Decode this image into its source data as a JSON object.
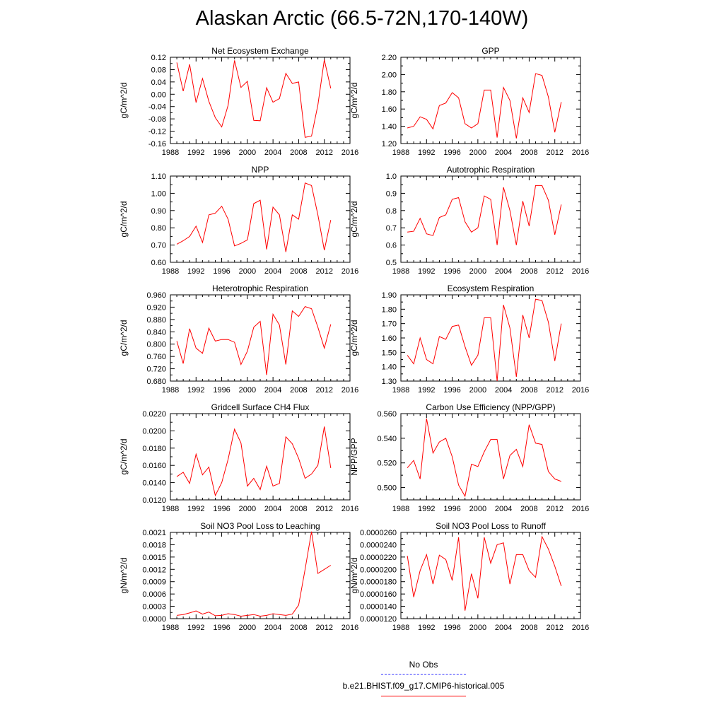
{
  "figure": {
    "title": "Alaskan Arctic (66.5-72N,170-140W)",
    "series_color": "#ff0000",
    "obs_color": "#3333ff"
  },
  "legend": {
    "obs_label": "No Obs",
    "model_label": "b.e21.BHIST.f09_g17.CMIP6-historical.005"
  },
  "chart_data": [
    {
      "type": "line",
      "title": "Net Ecosystem Exchange",
      "ylabel": "gC/m^2/d",
      "xlim": [
        1988,
        2016
      ],
      "xticks": [
        1988,
        1992,
        1996,
        2000,
        2004,
        2008,
        2012,
        2016
      ],
      "ylim": [
        -0.16,
        0.12
      ],
      "yticks": [
        "-0.16",
        "-0.12",
        "-0.08",
        "-0.04",
        "0.00",
        "0.04",
        "0.08",
        "0.12"
      ],
      "x": [
        1989,
        1990,
        1991,
        1992,
        1993,
        1994,
        1995,
        1996,
        1997,
        1998,
        1999,
        2000,
        2001,
        2002,
        2003,
        2004,
        2005,
        2006,
        2007,
        2008,
        2009,
        2010,
        2011,
        2012,
        2013
      ],
      "values": [
        0.103,
        0.01,
        0.097,
        -0.027,
        0.051,
        -0.023,
        -0.076,
        -0.106,
        -0.036,
        0.11,
        0.022,
        0.042,
        -0.085,
        -0.086,
        0.021,
        -0.026,
        -0.014,
        0.068,
        0.035,
        0.04,
        -0.14,
        -0.136,
        -0.035,
        0.112,
        0.019
      ]
    },
    {
      "type": "line",
      "title": "GPP",
      "ylabel": "gC/m^2/d",
      "xlim": [
        1988,
        2016
      ],
      "xticks": [
        1988,
        1992,
        1996,
        2000,
        2004,
        2008,
        2012,
        2016
      ],
      "ylim": [
        1.2,
        2.2
      ],
      "yticks": [
        "1.20",
        "1.40",
        "1.60",
        "1.80",
        "2.00",
        "2.20"
      ],
      "x": [
        1989,
        1990,
        1991,
        1992,
        1993,
        1994,
        1995,
        1996,
        1997,
        1998,
        1999,
        2000,
        2001,
        2002,
        2003,
        2004,
        2005,
        2006,
        2007,
        2008,
        2009,
        2010,
        2011,
        2012,
        2013
      ],
      "values": [
        1.38,
        1.4,
        1.51,
        1.48,
        1.37,
        1.64,
        1.67,
        1.79,
        1.73,
        1.43,
        1.38,
        1.43,
        1.82,
        1.82,
        1.27,
        1.85,
        1.7,
        1.26,
        1.73,
        1.56,
        2.01,
        1.99,
        1.74,
        1.33,
        1.68
      ]
    },
    {
      "type": "line",
      "title": "NPP",
      "ylabel": "gC/m^2/d",
      "xlim": [
        1988,
        2016
      ],
      "xticks": [
        1988,
        1992,
        1996,
        2000,
        2004,
        2008,
        2012,
        2016
      ],
      "ylim": [
        0.6,
        1.1
      ],
      "yticks": [
        "0.60",
        "0.70",
        "0.80",
        "0.90",
        "1.00",
        "1.10"
      ],
      "x": [
        1989,
        1990,
        1991,
        1992,
        1993,
        1994,
        1995,
        1996,
        1997,
        1998,
        1999,
        2000,
        2001,
        2002,
        2003,
        2004,
        2005,
        2006,
        2007,
        2008,
        2009,
        2010,
        2011,
        2012,
        2013
      ],
      "values": [
        0.705,
        0.725,
        0.75,
        0.81,
        0.715,
        0.875,
        0.885,
        0.925,
        0.85,
        0.695,
        0.71,
        0.73,
        0.94,
        0.96,
        0.675,
        0.92,
        0.875,
        0.66,
        0.875,
        0.85,
        1.06,
        1.045,
        0.875,
        0.67,
        0.845
      ]
    },
    {
      "type": "line",
      "title": "Autotrophic Respiration",
      "ylabel": "gC/m^2/d",
      "xlim": [
        1988,
        2016
      ],
      "xticks": [
        1988,
        1992,
        1996,
        2000,
        2004,
        2008,
        2012,
        2016
      ],
      "ylim": [
        0.5,
        1.0
      ],
      "yticks": [
        "0.5",
        "0.6",
        "0.7",
        "0.8",
        "0.9",
        "1.0"
      ],
      "x": [
        1989,
        1990,
        1991,
        1992,
        1993,
        1994,
        1995,
        1996,
        1997,
        1998,
        1999,
        2000,
        2001,
        2002,
        2003,
        2004,
        2005,
        2006,
        2007,
        2008,
        2009,
        2010,
        2011,
        2012,
        2013
      ],
      "values": [
        0.675,
        0.68,
        0.755,
        0.665,
        0.655,
        0.76,
        0.775,
        0.865,
        0.875,
        0.735,
        0.675,
        0.7,
        0.885,
        0.865,
        0.6,
        0.935,
        0.8,
        0.6,
        0.855,
        0.71,
        0.945,
        0.945,
        0.86,
        0.66,
        0.835
      ]
    },
    {
      "type": "line",
      "title": "Heterotrophic Respiration",
      "ylabel": "gC/m^2/d",
      "xlim": [
        1988,
        2016
      ],
      "xticks": [
        1988,
        1992,
        1996,
        2000,
        2004,
        2008,
        2012,
        2016
      ],
      "ylim": [
        0.68,
        0.96
      ],
      "yticks": [
        "0.680",
        "0.720",
        "0.760",
        "0.800",
        "0.840",
        "0.880",
        "0.920",
        "0.960"
      ],
      "x": [
        1989,
        1990,
        1991,
        1992,
        1993,
        1994,
        1995,
        1996,
        1997,
        1998,
        1999,
        2000,
        2001,
        2002,
        2003,
        2004,
        2005,
        2006,
        2007,
        2008,
        2009,
        2010,
        2011,
        2012,
        2013
      ],
      "values": [
        0.81,
        0.737,
        0.85,
        0.787,
        0.77,
        0.852,
        0.81,
        0.815,
        0.815,
        0.806,
        0.734,
        0.777,
        0.855,
        0.874,
        0.7,
        0.897,
        0.862,
        0.734,
        0.908,
        0.89,
        0.922,
        0.915,
        0.855,
        0.787,
        0.864
      ]
    },
    {
      "type": "line",
      "title": "Ecosystem Respiration",
      "ylabel": "gC/m^2/d",
      "xlim": [
        1988,
        2016
      ],
      "xticks": [
        1988,
        1992,
        1996,
        2000,
        2004,
        2008,
        2012,
        2016
      ],
      "ylim": [
        1.3,
        1.9
      ],
      "yticks": [
        "1.30",
        "1.40",
        "1.50",
        "1.60",
        "1.70",
        "1.80",
        "1.90"
      ],
      "x": [
        1989,
        1990,
        1991,
        1992,
        1993,
        1994,
        1995,
        1996,
        1997,
        1998,
        1999,
        2000,
        2001,
        2002,
        2003,
        2004,
        2005,
        2006,
        2007,
        2008,
        2009,
        2010,
        2011,
        2012,
        2013
      ],
      "values": [
        1.48,
        1.42,
        1.6,
        1.45,
        1.42,
        1.61,
        1.59,
        1.68,
        1.69,
        1.54,
        1.41,
        1.48,
        1.74,
        1.74,
        1.3,
        1.83,
        1.67,
        1.33,
        1.76,
        1.6,
        1.87,
        1.86,
        1.71,
        1.44,
        1.7
      ]
    },
    {
      "type": "line",
      "title": "Gridcell Surface CH4 Flux",
      "ylabel": "gC/m^2/d",
      "xlim": [
        1988,
        2016
      ],
      "xticks": [
        1988,
        1992,
        1996,
        2000,
        2004,
        2008,
        2012,
        2016
      ],
      "ylim": [
        0.012,
        0.022
      ],
      "yticks": [
        "0.0120",
        "0.0140",
        "0.0160",
        "0.0180",
        "0.0200",
        "0.0220"
      ],
      "x": [
        1989,
        1990,
        1991,
        1992,
        1993,
        1994,
        1995,
        1996,
        1997,
        1998,
        1999,
        2000,
        2001,
        2002,
        2003,
        2004,
        2005,
        2006,
        2007,
        2008,
        2009,
        2010,
        2011,
        2012,
        2013
      ],
      "values": [
        0.0147,
        0.0152,
        0.0139,
        0.0173,
        0.0149,
        0.0158,
        0.0125,
        0.014,
        0.0167,
        0.0202,
        0.0186,
        0.0136,
        0.0145,
        0.0132,
        0.0159,
        0.0136,
        0.0139,
        0.0193,
        0.0185,
        0.0168,
        0.0145,
        0.015,
        0.016,
        0.0205,
        0.0157
      ]
    },
    {
      "type": "line",
      "title": "Carbon Use Efficiency (NPP/GPP)",
      "ylabel": "NPP/GPP",
      "xlim": [
        1988,
        2016
      ],
      "xticks": [
        1988,
        1992,
        1996,
        2000,
        2004,
        2008,
        2012,
        2016
      ],
      "ylim": [
        0.49,
        0.56
      ],
      "yticks": [
        "0.500",
        "0.520",
        "0.540",
        "0.560"
      ],
      "x": [
        1989,
        1990,
        1991,
        1992,
        1993,
        1994,
        1995,
        1996,
        1997,
        1998,
        1999,
        2000,
        2001,
        2002,
        2003,
        2004,
        2005,
        2006,
        2007,
        2008,
        2009,
        2010,
        2011,
        2012,
        2013
      ],
      "values": [
        0.516,
        0.522,
        0.507,
        0.556,
        0.528,
        0.537,
        0.54,
        0.525,
        0.502,
        0.493,
        0.519,
        0.517,
        0.529,
        0.539,
        0.539,
        0.507,
        0.526,
        0.531,
        0.517,
        0.551,
        0.536,
        0.535,
        0.513,
        0.507,
        0.505
      ]
    },
    {
      "type": "line",
      "title": "Soil NO3 Pool Loss to Leaching",
      "ylabel": "gN/m^2/d",
      "xlim": [
        1988,
        2016
      ],
      "xticks": [
        1988,
        1992,
        1996,
        2000,
        2004,
        2008,
        2012,
        2016
      ],
      "ylim": [
        0.0,
        0.0021
      ],
      "yticks": [
        "0.0000",
        "0.0003",
        "0.0006",
        "0.0009",
        "0.0012",
        "0.0015",
        "0.0018",
        "0.0021"
      ],
      "x": [
        1989,
        1990,
        1991,
        1992,
        1993,
        1994,
        1995,
        1996,
        1997,
        1998,
        1999,
        2000,
        2001,
        2002,
        2003,
        2004,
        2005,
        2006,
        2007,
        2008,
        2009,
        2010,
        2011,
        2012,
        2013
      ],
      "values": [
        8e-05,
        0.0001,
        0.00014,
        0.00019,
        0.00011,
        0.00016,
        7e-05,
        8e-05,
        0.00012,
        0.0001,
        6e-05,
        8e-05,
        0.0001,
        6e-05,
        8e-05,
        0.00012,
        0.0001,
        8e-05,
        0.00011,
        0.00033,
        0.0012,
        0.00212,
        0.0011,
        0.0012,
        0.0013
      ]
    },
    {
      "type": "line",
      "title": "Soil NO3 Pool Loss to Runoff",
      "ylabel": "gN/m^2/d",
      "xlim": [
        1988,
        2016
      ],
      "xticks": [
        1988,
        1992,
        1996,
        2000,
        2004,
        2008,
        2012,
        2016
      ],
      "ylim": [
        1.2e-05,
        2.6e-05
      ],
      "yticks": [
        "0.0000120",
        "0.0000140",
        "0.0000160",
        "0.0000180",
        "0.0000200",
        "0.0000220",
        "0.0000240",
        "0.0000260"
      ],
      "x": [
        1989,
        1990,
        1991,
        1992,
        1993,
        1994,
        1995,
        1996,
        1997,
        1998,
        1999,
        2000,
        2001,
        2002,
        2003,
        2004,
        2005,
        2006,
        2007,
        2008,
        2009,
        2010,
        2011,
        2012,
        2013
      ],
      "values": [
        2.22e-05,
        1.55e-05,
        1.98e-05,
        2.24e-05,
        1.76e-05,
        2.23e-05,
        2.16e-05,
        1.82e-05,
        2.52e-05,
        1.33e-05,
        1.93e-05,
        1.53e-05,
        2.52e-05,
        2.1e-05,
        2.4e-05,
        2.43e-05,
        1.76e-05,
        2.24e-05,
        2.24e-05,
        1.98e-05,
        1.87e-05,
        2.53e-05,
        2.33e-05,
        2.05e-05,
        1.73e-05
      ]
    }
  ]
}
